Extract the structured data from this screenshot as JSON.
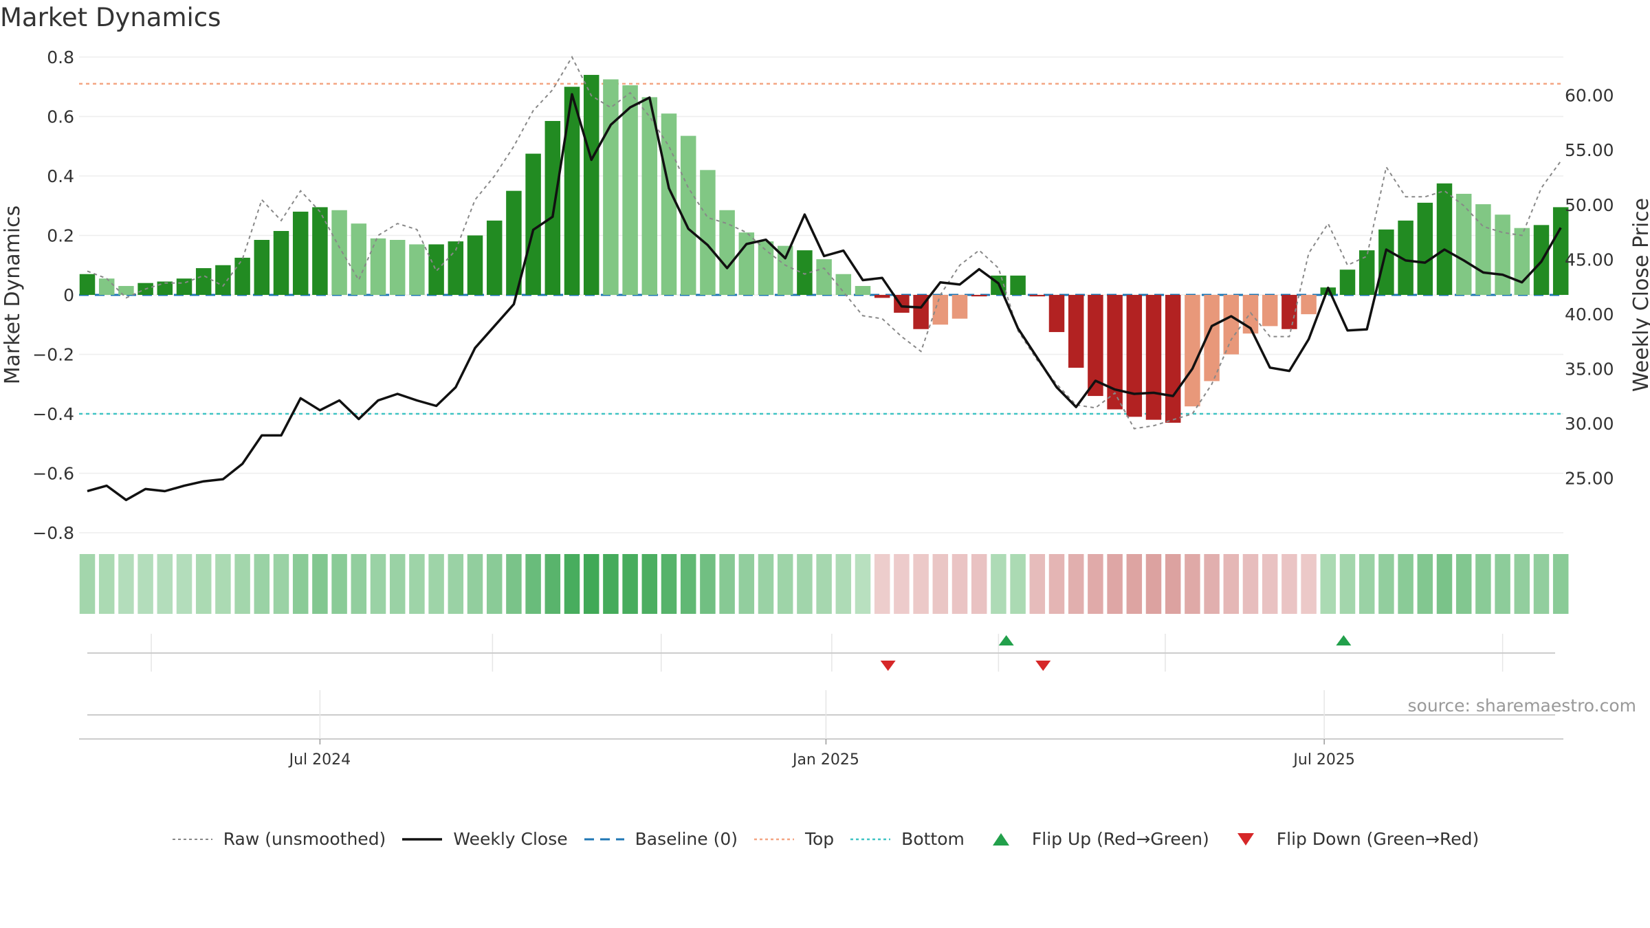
{
  "title": "Market Dynamics",
  "source": "source: sharemaestro.com",
  "colors": {
    "strong_green": "#228b22",
    "light_green": "#81c784",
    "strong_red": "#b22222",
    "light_red": "#e8987a",
    "weekly_close": "#111111",
    "raw": "#888888",
    "baseline": "#1f77b4",
    "top": "#f4a582",
    "bottom": "#40c4c4",
    "flip_up": "#22a04b",
    "flip_down": "#d62728"
  },
  "legend": [
    {
      "key": "raw",
      "label": "Raw (unsmoothed)",
      "icon": "dotted-line-icon"
    },
    {
      "key": "close",
      "label": "Weekly Close",
      "icon": "solid-line-icon"
    },
    {
      "key": "baseline",
      "label": "Baseline (0)",
      "icon": "dashed-line-icon"
    },
    {
      "key": "top",
      "label": "Top",
      "icon": "dotted-line-icon"
    },
    {
      "key": "bottom",
      "label": "Bottom",
      "icon": "dotted-line-icon"
    },
    {
      "key": "flip_up",
      "label": "Flip Up (Red→Green)",
      "icon": "triangle-up-icon"
    },
    {
      "key": "flip_down",
      "label": "Flip Down (Green→Red)",
      "icon": "triangle-down-icon"
    }
  ],
  "chart_data": {
    "type": "bar",
    "title": "Market Dynamics",
    "ylabel_left": "Market Dynamics",
    "ylabel_right": "Weekly Close Price",
    "ylim_left": [
      -0.8,
      0.8
    ],
    "yticks_left": [
      "0.8",
      "0.6",
      "0.4",
      "0.2",
      "0",
      "−0.2",
      "−0.4",
      "−0.6",
      "−0.8"
    ],
    "ylim_right": [
      20.0,
      63.5
    ],
    "yticks_right": [
      "60.00",
      "55.00",
      "50.00",
      "45.00",
      "40.00",
      "35.00",
      "30.00",
      "25.00"
    ],
    "xticks": [
      "Jul 2024",
      "Jan 2025",
      "Jul 2025"
    ],
    "xtick_weeks": [
      12,
      38.1,
      63.8
    ],
    "top_level": 0.71,
    "bottom_level": -0.4,
    "baseline": 0,
    "grid": true,
    "legend_position": "bottom",
    "weeks": 77,
    "dynamics": [
      0.07,
      0.055,
      0.03,
      0.04,
      0.045,
      0.055,
      0.09,
      0.1,
      0.125,
      0.185,
      0.215,
      0.28,
      0.295,
      0.285,
      0.24,
      0.19,
      0.185,
      0.17,
      0.17,
      0.18,
      0.2,
      0.25,
      0.35,
      0.475,
      0.585,
      0.7,
      0.74,
      0.725,
      0.705,
      0.665,
      0.61,
      0.535,
      0.42,
      0.285,
      0.21,
      0.18,
      0.165,
      0.15,
      0.12,
      0.07,
      0.03,
      -0.01,
      -0.06,
      -0.115,
      -0.1,
      -0.08,
      -0.005,
      0.065,
      0.065,
      -0.005,
      -0.125,
      -0.245,
      -0.34,
      -0.385,
      -0.41,
      -0.42,
      -0.43,
      -0.375,
      -0.29,
      -0.2,
      -0.13,
      -0.105,
      -0.115,
      -0.065,
      0.025,
      0.085,
      0.15,
      0.22,
      0.25,
      0.31,
      0.375,
      0.34,
      0.305,
      0.27,
      0.225,
      0.235,
      0.295
    ],
    "bar_shade": [
      "strong",
      "light",
      "light",
      "strong",
      "strong",
      "strong",
      "strong",
      "strong",
      "strong",
      "strong",
      "strong",
      "strong",
      "strong",
      "light",
      "light",
      "light",
      "light",
      "light",
      "strong",
      "strong",
      "strong",
      "strong",
      "strong",
      "strong",
      "strong",
      "strong",
      "strong",
      "light",
      "light",
      "light",
      "light",
      "light",
      "light",
      "light",
      "light",
      "light",
      "light",
      "strong",
      "light",
      "light",
      "light",
      "strong",
      "strong",
      "strong",
      "light",
      "light",
      "strong",
      "strong",
      "strong",
      "strong",
      "strong",
      "strong",
      "strong",
      "strong",
      "strong",
      "strong",
      "strong",
      "light",
      "light",
      "light",
      "light",
      "light",
      "strong",
      "light",
      "strong",
      "strong",
      "strong",
      "strong",
      "strong",
      "strong",
      "strong",
      "light",
      "light",
      "light",
      "light",
      "strong",
      "strong"
    ],
    "raw": [
      0.08,
      0.055,
      -0.01,
      0.02,
      0.04,
      0.04,
      0.065,
      0.03,
      0.12,
      0.32,
      0.25,
      0.35,
      0.28,
      0.16,
      0.05,
      0.2,
      0.24,
      0.22,
      0.08,
      0.15,
      0.32,
      0.4,
      0.5,
      0.62,
      0.69,
      0.8,
      0.67,
      0.63,
      0.68,
      0.6,
      0.5,
      0.36,
      0.26,
      0.24,
      0.21,
      0.15,
      0.1,
      0.07,
      0.09,
      0.01,
      -0.07,
      -0.08,
      -0.14,
      -0.19,
      0,
      0.1,
      0.15,
      0.09,
      -0.12,
      -0.22,
      -0.3,
      -0.37,
      -0.38,
      -0.33,
      -0.45,
      -0.44,
      -0.42,
      -0.4,
      -0.3,
      -0.15,
      -0.06,
      -0.14,
      -0.14,
      0.14,
      0.24,
      0.1,
      0.13,
      0.43,
      0.33,
      0.33,
      0.35,
      0.3,
      0.23,
      0.21,
      0.2,
      0.36,
      0.45
    ],
    "weekly_close": [
      23.8,
      24.3,
      23.0,
      24.0,
      23.8,
      24.3,
      24.7,
      24.9,
      26.3,
      28.9,
      28.9,
      32.3,
      31.2,
      32.1,
      30.4,
      32.1,
      32.7,
      32.1,
      31.6,
      33.3,
      36.9,
      38.9,
      40.9,
      47.7,
      48.9,
      60.1,
      54.1,
      57.3,
      58.9,
      59.8,
      51.5,
      47.8,
      46.3,
      44.2,
      46.4,
      46.8,
      45.1,
      49.1,
      45.3,
      45.8,
      43.1,
      43.3,
      40.7,
      40.6,
      42.9,
      42.7,
      44.1,
      42.8,
      38.7,
      36.0,
      33.3,
      31.5,
      33.9,
      33.1,
      32.7,
      32.8,
      32.5,
      35.0,
      38.9,
      39.8,
      38.7,
      35.1,
      34.8,
      37.7,
      42.4,
      38.5,
      38.6,
      45.9,
      44.9,
      44.7,
      45.9,
      44.9,
      43.8,
      43.6,
      42.9,
      44.8,
      47.9
    ],
    "heat_strength": [
      0.35,
      0.3,
      0.25,
      0.25,
      0.25,
      0.25,
      0.3,
      0.3,
      0.35,
      0.4,
      0.4,
      0.5,
      0.55,
      0.5,
      0.45,
      0.4,
      0.4,
      0.38,
      0.38,
      0.4,
      0.45,
      0.5,
      0.6,
      0.7,
      0.8,
      0.9,
      0.95,
      0.92,
      0.9,
      0.88,
      0.82,
      0.75,
      0.65,
      0.52,
      0.45,
      0.4,
      0.38,
      0.36,
      0.33,
      0.28,
      0.22,
      0.2,
      0.22,
      0.25,
      0.28,
      0.3,
      0.32,
      0.28,
      0.3,
      0.4,
      0.48,
      0.55,
      0.6,
      0.65,
      0.68,
      0.7,
      0.7,
      0.62,
      0.55,
      0.45,
      0.38,
      0.32,
      0.3,
      0.25,
      0.3,
      0.35,
      0.4,
      0.45,
      0.5,
      0.55,
      0.6,
      0.55,
      0.5,
      0.48,
      0.45,
      0.45,
      0.5
    ],
    "flip_up_weeks": [
      47.4,
      64.8
    ],
    "flip_down_weeks": [
      41.3,
      49.3
    ],
    "bottom_panel_ticks": [
      3.3,
      20.9,
      29.6,
      38.4,
      47,
      55.6,
      73
    ]
  }
}
